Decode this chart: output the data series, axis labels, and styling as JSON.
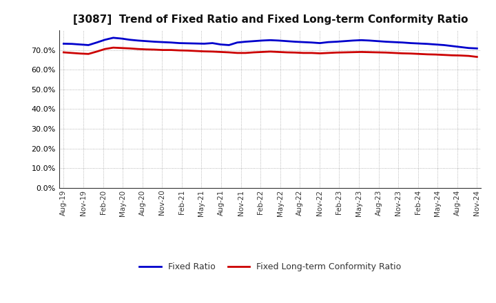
{
  "title": "[3087]  Trend of Fixed Ratio and Fixed Long-term Conformity Ratio",
  "title_fontsize": 11,
  "fixed_ratio": [
    73.2,
    73.1,
    72.8,
    72.5,
    73.8,
    75.2,
    76.2,
    75.8,
    75.2,
    74.8,
    74.5,
    74.2,
    74.0,
    73.8,
    73.5,
    73.4,
    73.3,
    73.2,
    73.5,
    72.8,
    72.5,
    73.8,
    74.2,
    74.5,
    74.8,
    75.0,
    74.8,
    74.5,
    74.2,
    74.0,
    73.8,
    73.5,
    74.0,
    74.2,
    74.5,
    74.8,
    75.0,
    74.8,
    74.5,
    74.2,
    74.0,
    73.8,
    73.5,
    73.3,
    73.1,
    72.8,
    72.5,
    72.0,
    71.5,
    71.0,
    70.8
  ],
  "fixed_long_term": [
    68.8,
    68.5,
    68.2,
    68.0,
    69.2,
    70.5,
    71.2,
    71.0,
    70.8,
    70.5,
    70.3,
    70.2,
    70.0,
    70.0,
    69.8,
    69.7,
    69.5,
    69.3,
    69.2,
    69.0,
    68.8,
    68.5,
    68.5,
    68.8,
    69.0,
    69.2,
    69.0,
    68.8,
    68.7,
    68.5,
    68.5,
    68.3,
    68.5,
    68.7,
    68.8,
    68.9,
    69.0,
    68.9,
    68.8,
    68.7,
    68.5,
    68.3,
    68.2,
    68.0,
    67.8,
    67.7,
    67.5,
    67.3,
    67.2,
    67.0,
    66.5
  ],
  "x_labels": [
    "Aug-19",
    "Nov-19",
    "Feb-20",
    "May-20",
    "Aug-20",
    "Nov-20",
    "Feb-21",
    "May-21",
    "Aug-21",
    "Nov-21",
    "Feb-22",
    "May-22",
    "Aug-22",
    "Nov-22",
    "Feb-23",
    "May-23",
    "Aug-23",
    "Nov-23",
    "Feb-24",
    "May-24",
    "Aug-24",
    "Nov-24"
  ],
  "fixed_ratio_color": "#0000CC",
  "fixed_long_term_color": "#CC0000",
  "line_width": 2.0,
  "ylim_min": 0,
  "ylim_max": 80,
  "yticks": [
    0,
    10,
    20,
    30,
    40,
    50,
    60,
    70
  ],
  "background_color": "#FFFFFF",
  "grid_color": "#888888",
  "legend_fixed_ratio": "Fixed Ratio",
  "legend_fixed_long_term": "Fixed Long-term Conformity Ratio"
}
